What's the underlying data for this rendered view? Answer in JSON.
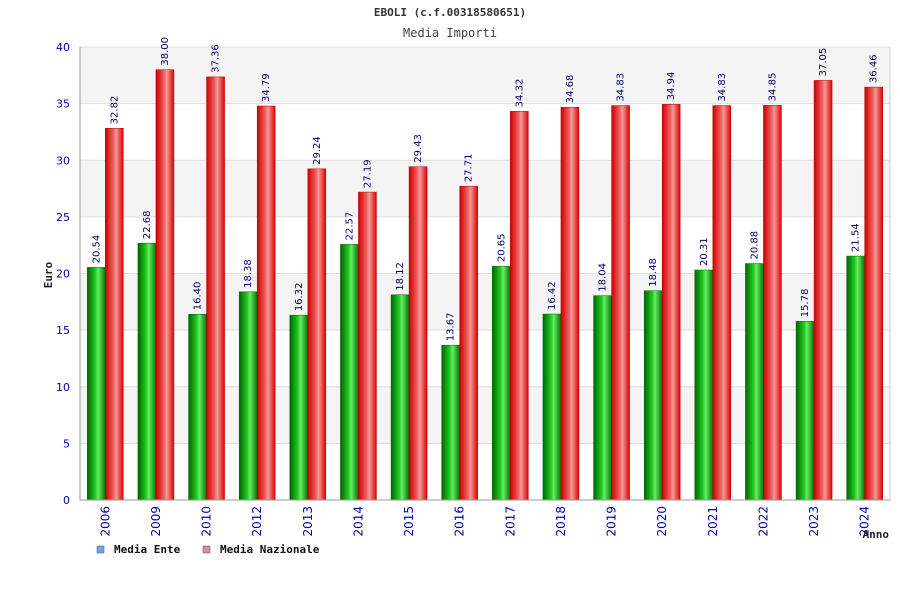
{
  "chart_data": {
    "type": "bar",
    "title": "EBOLI (c.f.00318580651)",
    "subtitle": "Media Importi",
    "xlabel": "Anno",
    "ylabel": "Euro",
    "ylim": [
      0,
      40
    ],
    "yticks": [
      0,
      5,
      10,
      15,
      20,
      25,
      30,
      35,
      40
    ],
    "categories": [
      "2006",
      "2009",
      "2010",
      "2012",
      "2013",
      "2014",
      "2015",
      "2016",
      "2017",
      "2018",
      "2019",
      "2020",
      "2021",
      "2022",
      "2023",
      "2024"
    ],
    "series": [
      {
        "name": "Media Ente",
        "color": "#00aa00",
        "legend_color": "#66aaee",
        "values": [
          20.54,
          22.68,
          16.4,
          18.38,
          16.32,
          22.57,
          18.12,
          13.67,
          20.65,
          16.42,
          18.04,
          18.48,
          20.31,
          20.88,
          15.78,
          21.54
        ],
        "labels": [
          "20.54",
          "22.68",
          "16.40",
          "18.38",
          "16.32",
          "22.57",
          "18.12",
          "13.67",
          "20.65",
          "16.42",
          "18.04",
          "18.48",
          "20.31",
          "20.88",
          "15.78",
          "21.54"
        ]
      },
      {
        "name": "Media Nazionale",
        "color": "#ee1111",
        "legend_color": "#dd88aa",
        "values": [
          32.82,
          38.0,
          37.36,
          34.79,
          29.24,
          27.19,
          29.43,
          27.71,
          34.32,
          34.68,
          34.83,
          34.94,
          34.83,
          34.85,
          37.05,
          36.46
        ],
        "labels": [
          "32.82",
          "38.00",
          "37.36",
          "34.79",
          "29.24",
          "27.19",
          "29.43",
          "27.71",
          "34.32",
          "34.68",
          "34.83",
          "34.94",
          "34.83",
          "34.85",
          "37.05",
          "36.46"
        ]
      }
    ],
    "grid": true,
    "legend_position": "bottom-left"
  }
}
